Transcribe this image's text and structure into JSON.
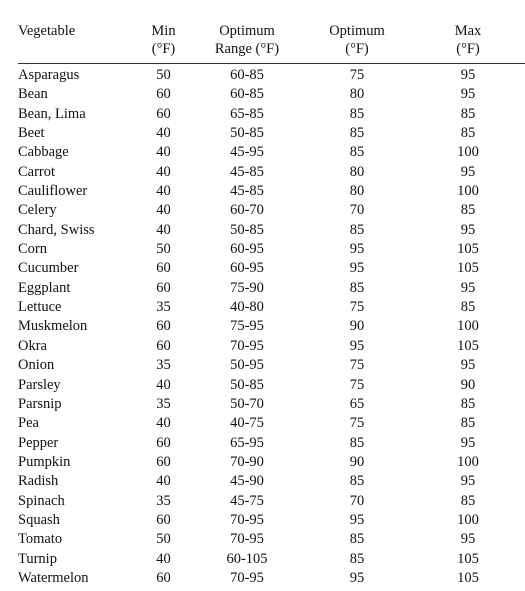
{
  "table": {
    "headers": [
      [
        "Vegetable"
      ],
      [
        "Min",
        "(°F)"
      ],
      [
        "Optimum",
        "Range (°F)"
      ],
      [
        "Optimum",
        "(°F)"
      ],
      [
        "Max",
        "(°F)"
      ]
    ],
    "rows": [
      [
        "Asparagus",
        "50",
        "60-85",
        "75",
        "95"
      ],
      [
        "Bean",
        "60",
        "60-85",
        "80",
        "95"
      ],
      [
        "Bean, Lima",
        "60",
        "65-85",
        "85",
        "85"
      ],
      [
        "Beet",
        "40",
        "50-85",
        "85",
        "85"
      ],
      [
        "Cabbage",
        "40",
        "45-95",
        "85",
        "100"
      ],
      [
        "Carrot",
        "40",
        "45-85",
        "80",
        "95"
      ],
      [
        "Cauliflower",
        "40",
        "45-85",
        "80",
        "100"
      ],
      [
        "Celery",
        "40",
        "60-70",
        "70",
        "85"
      ],
      [
        "Chard, Swiss",
        "40",
        "50-85",
        "85",
        "95"
      ],
      [
        "Corn",
        "50",
        "60-95",
        "95",
        "105"
      ],
      [
        "Cucumber",
        "60",
        "60-95",
        "95",
        "105"
      ],
      [
        "Eggplant",
        "60",
        "75-90",
        "85",
        "95"
      ],
      [
        "Lettuce",
        "35",
        "40-80",
        "75",
        "85"
      ],
      [
        "Muskmelon",
        "60",
        "75-95",
        "90",
        "100"
      ],
      [
        "Okra",
        "60",
        "70-95",
        "95",
        "105"
      ],
      [
        "Onion",
        "35",
        "50-95",
        "75",
        "95"
      ],
      [
        "Parsley",
        "40",
        "50-85",
        "75",
        "90"
      ],
      [
        "Parsnip",
        "35",
        "50-70",
        "65",
        "85"
      ],
      [
        "Pea",
        "40",
        "40-75",
        "75",
        "85"
      ],
      [
        "Pepper",
        "60",
        "65-95",
        "85",
        "95"
      ],
      [
        "Pumpkin",
        "60",
        "70-90",
        "90",
        "100"
      ],
      [
        "Radish",
        "40",
        "45-90",
        "85",
        "95"
      ],
      [
        "Spinach",
        "35",
        "45-75",
        "70",
        "85"
      ],
      [
        "Squash",
        "60",
        "70-95",
        "95",
        "100"
      ],
      [
        "Tomato",
        "50",
        "70-95",
        "85",
        "95"
      ],
      [
        "Turnip",
        "40",
        "60-105",
        "85",
        "105"
      ],
      [
        "Watermelon",
        "60",
        "70-95",
        "95",
        "105"
      ]
    ]
  }
}
